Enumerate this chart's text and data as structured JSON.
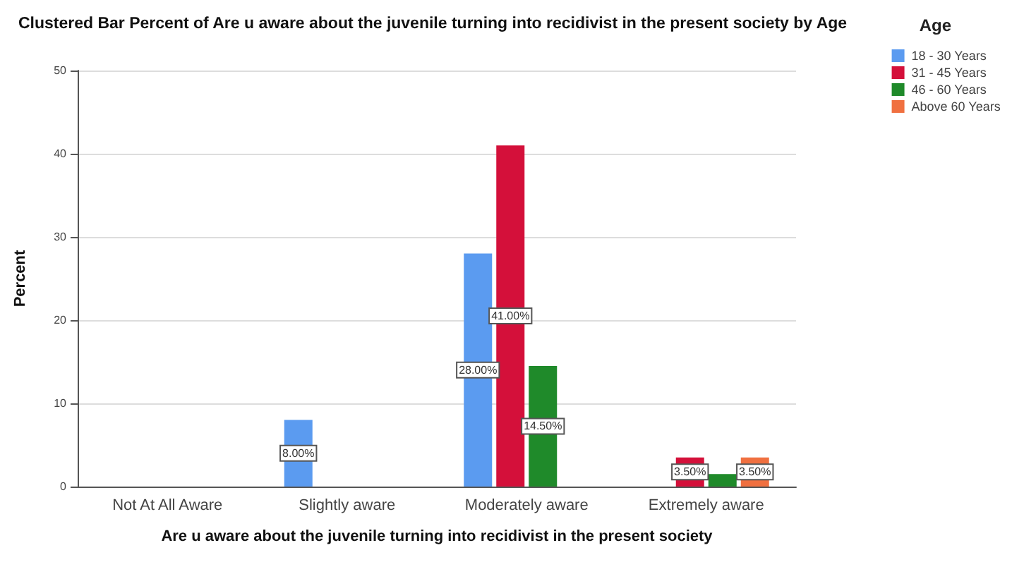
{
  "chart_data": {
    "type": "bar",
    "title": "Clustered Bar Percent of Are u aware about the juvenile turning into recidivist in the present society by Age",
    "xlabel": "Are u aware about the juvenile turning into recidivist in the present society",
    "ylabel": "Percent",
    "legend_title": "Age",
    "categories": [
      "Not At All Aware",
      "Slightly aware",
      "Moderately aware",
      "Extremely aware"
    ],
    "series": [
      {
        "name": "18 - 30 Years",
        "color": "#5b9bf0",
        "values": [
          null,
          8,
          28,
          null
        ],
        "value_labels": [
          null,
          "8.00%",
          "28.00%",
          null
        ]
      },
      {
        "name": "31 - 45 Years",
        "color": "#d4103a",
        "values": [
          null,
          null,
          41,
          3.5
        ],
        "value_labels": [
          null,
          null,
          "41.00%",
          "3.50%"
        ]
      },
      {
        "name": "46 - 60 Years",
        "color": "#1f8a2a",
        "values": [
          null,
          null,
          14.5,
          1.5
        ],
        "value_labels": [
          null,
          null,
          "14.50%",
          null
        ]
      },
      {
        "name": "Above 60 Years",
        "color": "#f07040",
        "values": [
          null,
          null,
          null,
          3.5
        ],
        "value_labels": [
          null,
          null,
          null,
          "3.50%"
        ]
      }
    ],
    "ylim": [
      0,
      50
    ],
    "yticks": [
      0,
      10,
      20,
      30,
      40,
      50
    ],
    "grid": "y",
    "legend": "top right"
  }
}
